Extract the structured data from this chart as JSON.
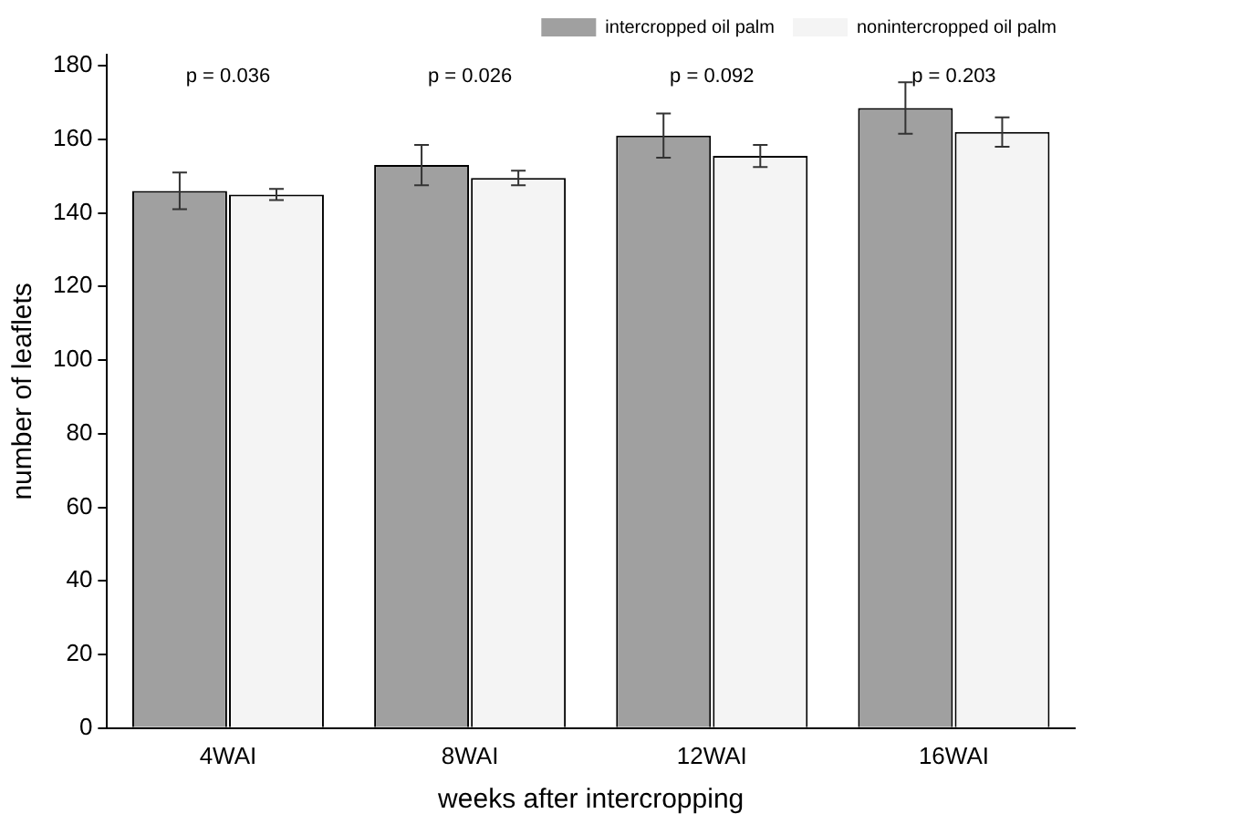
{
  "chart_data": {
    "type": "bar",
    "xlabel": "weeks after intercropping",
    "ylabel": "number of leaflets",
    "categories": [
      "4WAI",
      "8WAI",
      "12WAI",
      "16WAI"
    ],
    "series": [
      {
        "name": "intercropped oil palm",
        "color": "#a0a0a0",
        "values": [
          146,
          153,
          161,
          168.5
        ],
        "errors": [
          5,
          5.5,
          6,
          7
        ]
      },
      {
        "name": "nonintercropped oil palm",
        "color": "#f4f4f4",
        "values": [
          145,
          149.5,
          155.5,
          162
        ],
        "errors": [
          1.5,
          2,
          3,
          4
        ]
      }
    ],
    "ylim": [
      0,
      183
    ],
    "yticks": [
      0,
      20,
      40,
      60,
      80,
      100,
      120,
      140,
      160,
      180
    ],
    "grid": false,
    "legend": "top right",
    "annotations": [
      "p = 0.036",
      "p = 0.026",
      "p = 0.092",
      "p = 0.203"
    ]
  }
}
